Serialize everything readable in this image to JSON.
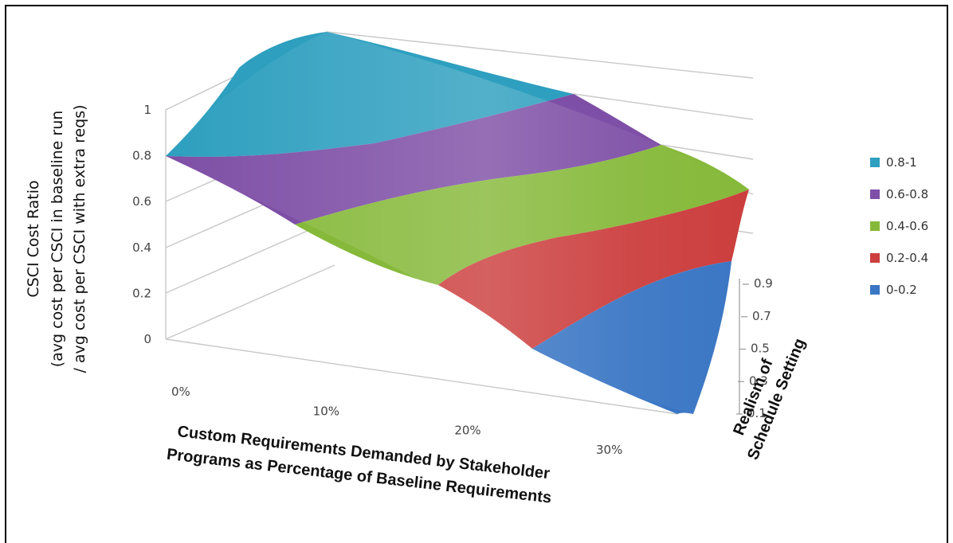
{
  "chart_data": {
    "type": "surface",
    "y_axis": {
      "label_line1": "CSCI Cost Ratio",
      "label_line2": "(avg cost per CSCI in baseline run",
      "label_line3": "/ avg cost per CSCI with extra reqs)",
      "ticks": [
        "0",
        "0.2",
        "0.4",
        "0.6",
        "0.8",
        "1"
      ],
      "range": [
        0,
        1
      ]
    },
    "x_axis": {
      "label_line1": "Custom Requirements Demanded by Stakeholder",
      "label_line2": "Programs as Percentage of Baseline Requirements",
      "ticks": [
        "0%",
        "10%",
        "20%",
        "30%"
      ]
    },
    "depth_axis": {
      "label_line1": "Realism of",
      "label_line2": "Schedule Setting",
      "ticks": [
        "0.1",
        "0.3",
        "0.5",
        "0.7",
        "0.9"
      ]
    },
    "legend": {
      "placement": "right",
      "entries": [
        {
          "label": "0.8-1",
          "color": "#2E9FBF"
        },
        {
          "label": "0.6-0.8",
          "color": "#7E4FA6"
        },
        {
          "label": "0.4-0.6",
          "color": "#86B93A"
        },
        {
          "label": "0.2-0.4",
          "color": "#CC3E3E"
        },
        {
          "label": "0-0.2",
          "color": "#3A76C4"
        }
      ]
    }
  }
}
